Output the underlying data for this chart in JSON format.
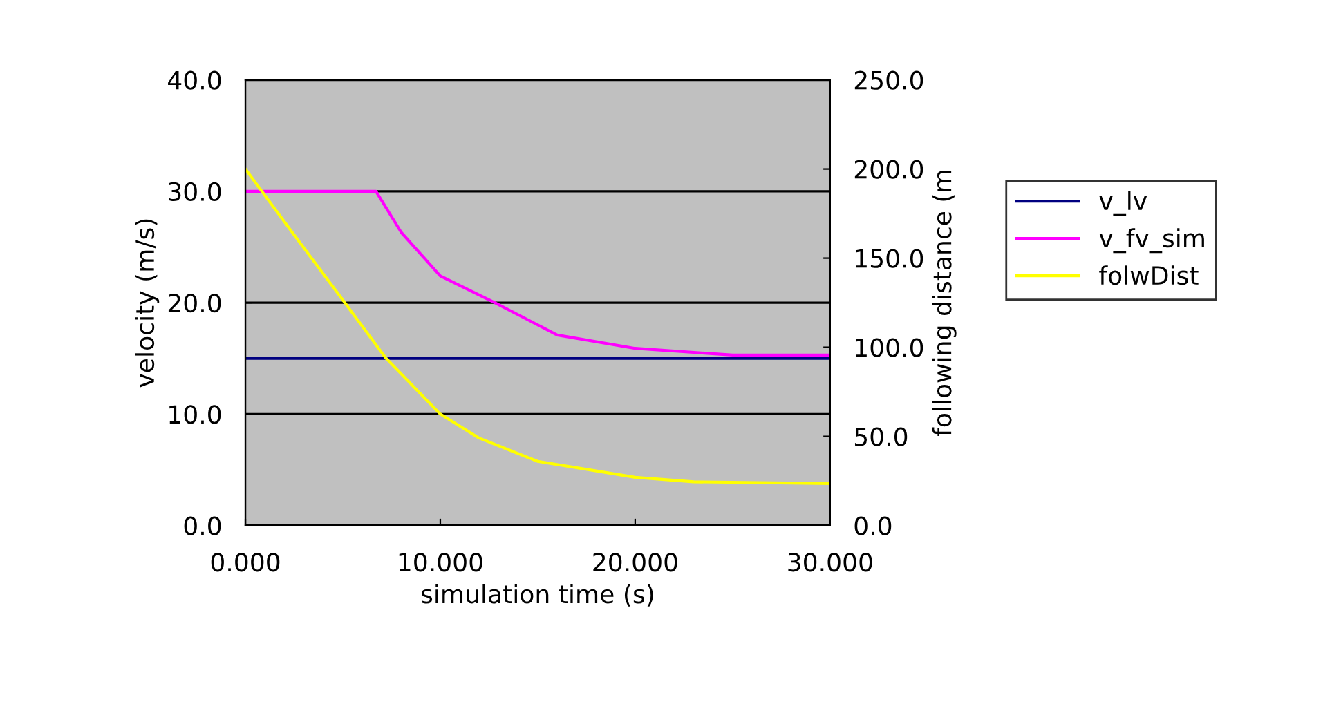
{
  "chart_data": {
    "type": "line",
    "xlabel": "simulation time (s)",
    "ylabel": "velocity (m/s)",
    "y2label": "following distance (m",
    "xlim": [
      0,
      30
    ],
    "xticks": [
      {
        "value": 0,
        "label": "0.000"
      },
      {
        "value": 10,
        "label": "10.000"
      },
      {
        "value": 20,
        "label": "20.000"
      },
      {
        "value": 30,
        "label": "30.000"
      }
    ],
    "ylim": [
      0,
      40
    ],
    "yticks": [
      {
        "value": 0,
        "label": "0.0"
      },
      {
        "value": 10,
        "label": "10.0"
      },
      {
        "value": 20,
        "label": "20.0"
      },
      {
        "value": 30,
        "label": "30.0"
      },
      {
        "value": 40,
        "label": "40.0"
      }
    ],
    "y2lim": [
      0,
      250
    ],
    "y2ticks": [
      {
        "value": 0,
        "label": "0.0"
      },
      {
        "value": 50,
        "label": "50.0"
      },
      {
        "value": 100,
        "label": "100.0"
      },
      {
        "value": 150,
        "label": "150.0"
      },
      {
        "value": 200,
        "label": "200.0"
      },
      {
        "value": 250,
        "label": "250.0"
      }
    ],
    "grid": "y",
    "legend": "right",
    "marker": "none",
    "line_style": "solid",
    "series": [
      {
        "name": "v_lv",
        "color": "#000080",
        "x": [
          0,
          30
        ],
        "values": [
          15,
          15
        ]
      },
      {
        "name": "v_fv_sim",
        "color": "#ff00ff",
        "x": [
          0,
          6.7,
          8,
          10,
          12.8,
          16,
          20,
          25,
          30
        ],
        "values": [
          30,
          30,
          26.3,
          22.4,
          20,
          17.1,
          15.9,
          15.3,
          15.3
        ]
      },
      {
        "name": "folwDist",
        "color": "#ffff00",
        "axis": "y2",
        "x": [
          0,
          2.5,
          5.1,
          7.2,
          10,
          12,
          15,
          20,
          23,
          30
        ],
        "values": [
          200,
          163,
          125,
          94,
          62.5,
          49,
          36,
          27,
          24.5,
          23.5
        ]
      }
    ]
  }
}
